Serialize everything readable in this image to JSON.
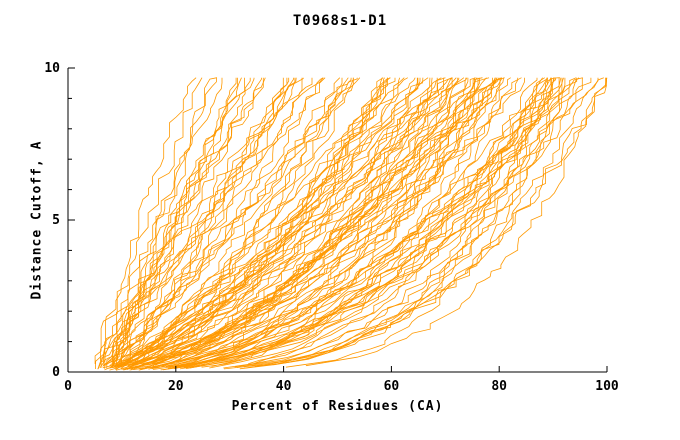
{
  "chart_data": {
    "type": "line",
    "title": "T0968s1-D1",
    "xlabel": "Percent of Residues (CA)",
    "ylabel": "Distance Cutoff, A",
    "xlim": [
      0,
      100
    ],
    "ylim": [
      0,
      10
    ],
    "xticks": [
      0,
      20,
      40,
      60,
      80,
      100
    ],
    "yticks_major": [
      0,
      5,
      10
    ],
    "yticks_minor_step": 1,
    "grid": false,
    "legend": "none",
    "background": "#ffffff",
    "axis_color": "#000000",
    "series_color": "#ff9900",
    "ensemble": {
      "description": "Dense family of ~120 overlapping per-model distance-cutoff curves. Each curve is monotonically increasing, starting near x=4-9 percent at cutoff ~0 and rising jaggedly to the top of the plot (cutoff ~9.7 A) at a final percent-of-residues value between ~22 and 100. Better models hug the bottom-right (long horizontal run at low cutoff, steep climb near x=90-100); poorer models climb diagonally and reach the top near x=22-40.",
      "count": 120,
      "seed": 42,
      "y_top": 9.68,
      "x_start_range": [
        4,
        9
      ],
      "x_end_range": [
        22,
        100
      ]
    }
  }
}
